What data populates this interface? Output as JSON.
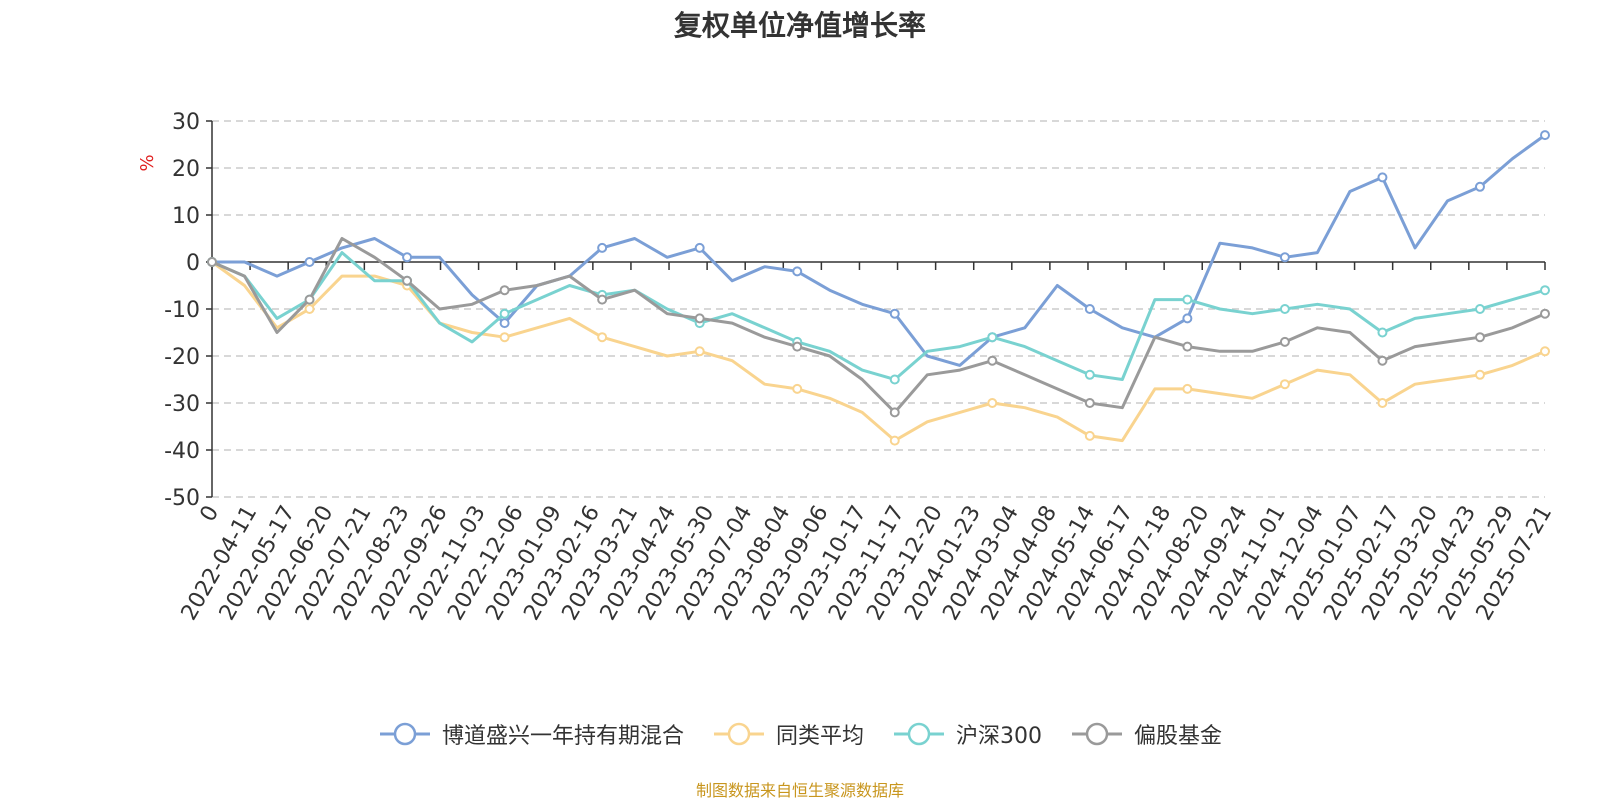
{
  "title": "复权单位净值增长率",
  "source_note": "制图数据来自恒生聚源数据库",
  "chart_data": {
    "type": "line",
    "title": "复权单位净值增长率",
    "ylabel": "%",
    "ylim": [
      -50,
      30
    ],
    "yticks": [
      -50,
      -40,
      -30,
      -20,
      -10,
      0,
      10,
      20,
      30
    ],
    "grid": true,
    "legend_position": "bottom",
    "x_tick_labels": [
      "0",
      "2022-04-11",
      "2022-05-17",
      "2022-06-20",
      "2022-07-21",
      "2022-08-23",
      "2022-09-26",
      "2022-11-03",
      "2022-12-06",
      "2023-01-09",
      "2023-02-16",
      "2023-03-21",
      "2023-04-24",
      "2023-05-30",
      "2023-07-04",
      "2023-08-04",
      "2023-09-06",
      "2023-10-17",
      "2023-11-17",
      "2023-12-20",
      "2024-01-23",
      "2024-03-04",
      "2024-04-08",
      "2024-05-14",
      "2024-06-17",
      "2024-07-18",
      "2024-08-20",
      "2024-09-24",
      "2024-11-01",
      "2024-12-04",
      "2025-01-07",
      "2025-02-17",
      "2025-03-20",
      "2025-04-23",
      "2025-05-29",
      "2025-07-21"
    ],
    "series": [
      {
        "name": "博道盛兴一年持有期混合",
        "color": "#7b9fd6",
        "values": [
          0,
          0,
          -3,
          0,
          3,
          5,
          1,
          1,
          -7,
          -13,
          -5,
          -3,
          3,
          5,
          1,
          3,
          -4,
          -1,
          -2,
          -6,
          -9,
          -11,
          -20,
          -22,
          -16,
          -14,
          -5,
          -10,
          -14,
          -16,
          -12,
          4,
          3,
          1,
          2,
          15,
          18,
          3,
          13,
          16,
          22,
          27
        ]
      },
      {
        "name": "同类平均",
        "color": "#f9d48f",
        "values": [
          0,
          -5,
          -14,
          -10,
          -3,
          -3,
          -5,
          -13,
          -15,
          -16,
          -14,
          -12,
          -16,
          -18,
          -20,
          -19,
          -21,
          -26,
          -27,
          -29,
          -32,
          -38,
          -34,
          -32,
          -30,
          -31,
          -33,
          -37,
          -38,
          -27,
          -27,
          -28,
          -29,
          -26,
          -23,
          -24,
          -30,
          -26,
          -25,
          -24,
          -22,
          -19
        ]
      },
      {
        "name": "沪深300",
        "color": "#79d2d0",
        "values": [
          0,
          -3,
          -12,
          -8,
          2,
          -4,
          -4,
          -13,
          -17,
          -11,
          -8,
          -5,
          -7,
          -6,
          -10,
          -13,
          -11,
          -14,
          -17,
          -19,
          -23,
          -25,
          -19,
          -18,
          -16,
          -18,
          -21,
          -24,
          -25,
          -8,
          -8,
          -10,
          -11,
          -10,
          -9,
          -10,
          -15,
          -12,
          -11,
          -10,
          -8,
          -6
        ]
      },
      {
        "name": "偏股基金",
        "color": "#9a9a9a",
        "values": [
          0,
          -3,
          -15,
          -8,
          5,
          1,
          -4,
          -10,
          -9,
          -6,
          -5,
          -3,
          -8,
          -6,
          -11,
          -12,
          -13,
          -16,
          -18,
          -20,
          -25,
          -32,
          -24,
          -23,
          -21,
          -24,
          -27,
          -30,
          -31,
          -16,
          -18,
          -19,
          -19,
          -17,
          -14,
          -15,
          -21,
          -18,
          -17,
          -16,
          -14,
          -11
        ]
      }
    ]
  }
}
